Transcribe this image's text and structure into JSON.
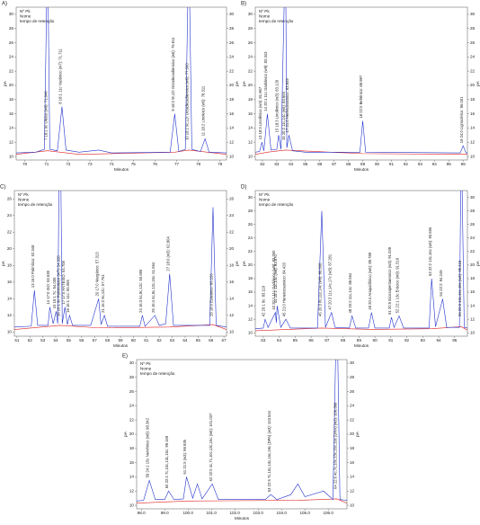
{
  "chart_data": [
    {
      "type": "line",
      "panel": "A)",
      "info_lines": [
        "Nº Pk",
        "Nome",
        "tempo de retenção"
      ],
      "xlabel": "Minutos",
      "ylabel": "pA",
      "xlim": [
        69.6,
        79.3
      ],
      "xticks": [
        70,
        71,
        72,
        73,
        74,
        75,
        76,
        77,
        78,
        79
      ],
      "ylim": [
        9.5,
        31
      ],
      "yticks": [
        10,
        12,
        14,
        16,
        18,
        20,
        22,
        24,
        26,
        28,
        30
      ],
      "series": [
        {
          "color": "#2233cc",
          "x": [
            69.6,
            70.5,
            70.9,
            71.046,
            71.15,
            71.5,
            71.711,
            71.9,
            72.5,
            73.4,
            74,
            76.7,
            76.911,
            77.1,
            77.4,
            77.56,
            77.7,
            78.1,
            78.311,
            78.5,
            79.3
          ],
          "values": [
            10.5,
            10.6,
            11,
            40,
            11,
            10.8,
            17,
            10.9,
            10.6,
            10.9,
            10.5,
            10.6,
            16,
            10.7,
            11,
            40,
            11,
            10.7,
            12.5,
            10.6,
            10.5
          ]
        },
        {
          "color": "#e02020",
          "x": [
            69.6,
            71.046,
            72.5,
            76.911,
            77.56,
            79.3
          ],
          "values": [
            10.3,
            10.8,
            10.3,
            10.6,
            10.9,
            10.3
          ]
        }
      ],
      "annotations": [
        {
          "text": "7 18:1 9c Oleico (w9): 71.046",
          "x": 71.046
        },
        {
          "text": "8 18:1 11c Vacênico (w7): 71.711",
          "x": 71.711
        },
        {
          "text": "9 18:2 9t,12t Octadecadienoico (w6): 76.911",
          "x": 76.911
        },
        {
          "text": "10 18:2 9c,12t Octadecadienoico (w6): 77.560",
          "x": 77.56
        },
        {
          "text": "11 18:2 Linoleico (w6): 78.311",
          "x": 78.311
        }
      ]
    },
    {
      "type": "line",
      "panel": "B)",
      "info_lines": [
        "Nº Pk",
        "Nome",
        "tempo de retenção"
      ],
      "xlabel": "Minutos",
      "ylabel": "pA",
      "xlim": [
        81.5,
        96.3
      ],
      "xticks": [
        82,
        83,
        84,
        85,
        86,
        87,
        88,
        89,
        90,
        91,
        92,
        93,
        94,
        95,
        96
      ],
      "ylim": [
        9.5,
        31
      ],
      "yticks": [
        10,
        12,
        14,
        16,
        18,
        20,
        22,
        24,
        26,
        28,
        30
      ],
      "series": [
        {
          "color": "#2233cc",
          "x": [
            81.5,
            81.8,
            81.967,
            82.1,
            82.343,
            82.6,
            83.0,
            83.129,
            83.3,
            83.604,
            83.7,
            83.849,
            84.1,
            85,
            88.8,
            88.997,
            89.2,
            95.8,
            96.001,
            96.2,
            96.3
          ],
          "values": [
            10.6,
            10.7,
            12,
            10.8,
            16,
            10.9,
            11,
            13,
            11,
            40,
            11.2,
            13,
            10.8,
            10.6,
            10.6,
            15,
            10.6,
            10.5,
            11.5,
            10.5,
            10.5
          ]
        },
        {
          "color": "#e02020",
          "x": [
            81.5,
            82.343,
            83.604,
            89,
            96.3
          ],
          "values": [
            10.3,
            10.6,
            10.9,
            10.4,
            10.3
          ]
        }
      ],
      "annotations": [
        {
          "text": "13 18:3 Linolênico (w3): 81.967",
          "x": 81.967
        },
        {
          "text": "14 20:1 11c Gadoleico (w9): 82.343",
          "x": 82.343
        },
        {
          "text": "15 18:3 Linolênico (w3): 83.129",
          "x": 83.129
        },
        {
          "text": "16 20:2 11c,14c (w6): 83.604",
          "x": 83.604
        },
        {
          "text": "17 21:0 Heneicosanoico: 83.849",
          "x": 83.849
        },
        {
          "text": "18 22:0 Behênico: 88.997",
          "x": 88.997
        },
        {
          "text": "19 24:0 Lignocérico: 96.001",
          "x": 96.001
        }
      ]
    },
    {
      "type": "line",
      "panel": "C)",
      "info_lines": [
        "Nº Pk",
        "Nome",
        "tempo de retenção"
      ],
      "xlabel": "Minutos",
      "ylabel": "pA",
      "xlim": [
        50.8,
        67.2
      ],
      "xticks": [
        51,
        52,
        53,
        54,
        55,
        56,
        57,
        58,
        59,
        60,
        61,
        62,
        63,
        64,
        65,
        66,
        67
      ],
      "ylim": [
        9.5,
        27
      ],
      "yticks": [
        10,
        12,
        14,
        16,
        18,
        20,
        22,
        24,
        26
      ],
      "series": [
        {
          "color": "#2233cc",
          "x": [
            50.8,
            52.1,
            52.348,
            52.6,
            53.4,
            53.539,
            53.8,
            54.035,
            54.15,
            54.32,
            54.5,
            54.708,
            54.9,
            55.066,
            55.3,
            56.7,
            57.313,
            57.5,
            57.761,
            58,
            60.5,
            60.695,
            60.9,
            61.664,
            62,
            62.5,
            62.804,
            63.1,
            65.9,
            66.156,
            66.4,
            67.2
          ],
          "values": [
            10.6,
            10.7,
            15,
            10.8,
            10.8,
            13,
            11,
            12.5,
            11,
            40,
            11,
            13,
            10.9,
            12,
            10.8,
            10.8,
            14,
            10.9,
            12,
            10.7,
            10.7,
            12,
            10.7,
            12,
            10.8,
            11,
            17,
            10.8,
            10.8,
            25,
            10.8,
            10.6
          ]
        },
        {
          "color": "#e02020",
          "x": [
            50.8,
            54.32,
            57.313,
            62.804,
            66.156,
            67.2
          ],
          "values": [
            10.3,
            10.8,
            10.5,
            10.6,
            10.9,
            10.3
          ]
        }
      ],
      "annotations": [
        {
          "text": "13 16:0 Palmítico: 52.348",
          "x": 52.348
        },
        {
          "text": "14 17:0 ISO: 53.539",
          "x": 53.539
        },
        {
          "text": "15 16:1 7c: 54.035",
          "x": 54.035
        },
        {
          "text": "16 16:1 9c Palmitoleico (w7): 54.320",
          "x": 54.32
        },
        {
          "text": "17 17:0 ANTEISO: 54.708",
          "x": 54.708
        },
        {
          "text": "18 16:1 11c: 55.066",
          "x": 55.066
        },
        {
          "text": "20 17:0 Margárico: 57.313",
          "x": 57.313
        },
        {
          "text": "21 16:2 9c,12c: 57.761",
          "x": 57.761
        },
        {
          "text": "24 16:3 6c,9c,12c: 60.695",
          "x": 60.695
        },
        {
          "text": "25 16:4 6c,9c,12c,15c: 61.664",
          "x": 61.664
        },
        {
          "text": "27 18:0 (w3): 62.804",
          "x": 62.804
        },
        {
          "text": "28 18:0 Esteárico: 66.156",
          "x": 66.156
        }
      ]
    },
    {
      "type": "line",
      "panel": "D)",
      "info_lines": [
        "Nº Pk",
        "Nome",
        "tempo de retenção"
      ],
      "xlabel": "Minutos",
      "ylabel": "pA",
      "xlim": [
        82.5,
        95.8
      ],
      "xticks": [
        83,
        84,
        85,
        86,
        87,
        88,
        89,
        90,
        91,
        92,
        93,
        94,
        95
      ],
      "ylim": [
        9.5,
        31
      ],
      "yticks": [
        10,
        12,
        14,
        16,
        18,
        20,
        22,
        24,
        26,
        28,
        30
      ],
      "series": [
        {
          "color": "#2233cc",
          "x": [
            82.5,
            83.0,
            83.119,
            83.3,
            83.76,
            83.82,
            83.87,
            84.1,
            84.42,
            84.7,
            86.4,
            86.668,
            86.9,
            87.281,
            87.5,
            88.4,
            88.564,
            88.8,
            89.6,
            89.789,
            90,
            90.9,
            91.039,
            91.2,
            91.519,
            91.8,
            93.4,
            93.556,
            93.8,
            94.249,
            94.5,
            95.3,
            95.415,
            95.6,
            95.8
          ],
          "values": [
            10.6,
            10.7,
            12,
            10.8,
            13,
            11.5,
            14,
            10.8,
            12,
            10.7,
            10.7,
            28,
            10.8,
            13,
            10.8,
            10.7,
            12.5,
            10.7,
            10.7,
            13,
            10.7,
            10.7,
            12.3,
            10.8,
            12.5,
            10.7,
            10.7,
            18,
            10.9,
            15,
            10.8,
            10.8,
            40,
            10.8,
            10.7
          ]
        },
        {
          "color": "#e02020",
          "x": [
            82.5,
            86.668,
            89.789,
            93.556,
            95.415,
            95.8
          ],
          "values": [
            10.3,
            10.7,
            10.5,
            10.6,
            10.9,
            10.4
          ]
        }
      ],
      "annotations": [
        {
          "text": "42 20:1 9c: 83.119",
          "x": 83.119
        },
        {
          "text": "43 20:1 11c Gadoleico (w9): 83.760",
          "x": 83.76
        },
        {
          "text": "44 20:2 11c,14c (w6): 83.870",
          "x": 83.87
        },
        {
          "text": "45 21:0 Heneicosanoico: 84.420",
          "x": 84.42
        },
        {
          "text": "46 20:3 8c,11c,14c (w6): 86.668",
          "x": 86.668
        },
        {
          "text": "47 20:3 11c,14c,17c (w3): 87.281",
          "x": 87.281
        },
        {
          "text": "48 20:2 11c,14c: 88.564",
          "x": 88.564
        },
        {
          "text": "49 20:4 Araquidônico (w6): 89.789",
          "x": 89.789
        },
        {
          "text": "51 20:5 Eicosapentaenoico (w3): 91.039",
          "x": 91.039
        },
        {
          "text": "52 22:1 13c Erúcico (w9): 91.519",
          "x": 91.519
        },
        {
          "text": "53 22:2 13c,16c (w6): 93.556",
          "x": 93.556
        },
        {
          "text": "54 22:2: 94.249",
          "x": 94.249
        },
        {
          "text": "56 22:3 13c,16c,19c (w3): 95.415",
          "x": 95.415
        }
      ]
    },
    {
      "type": "line",
      "panel": "E)",
      "info_lines": [
        "Nº Pk",
        "Nome",
        "tempo de retenção"
      ],
      "xlabel": "Minutos",
      "ylabel": "pA",
      "xlim": [
        97.8,
        106.8
      ],
      "xticks": [
        {
          "value": 98,
          "label": "98.0"
        },
        {
          "value": 99,
          "label": "99.0"
        },
        {
          "value": 100,
          "label": "100.0"
        },
        {
          "value": 101,
          "label": "101.0"
        },
        {
          "value": 102,
          "label": "102.0"
        },
        {
          "value": 103,
          "label": "103.0"
        },
        {
          "value": 104,
          "label": "104.0"
        },
        {
          "value": 105,
          "label": "105.0"
        },
        {
          "value": 106,
          "label": "106.0"
        }
      ],
      "ylim": [
        9.5,
        30.5
      ],
      "yticks": [
        10,
        12,
        14,
        16,
        18,
        20,
        22,
        24,
        26,
        28,
        30
      ],
      "series": [
        {
          "color": "#2233cc",
          "x": [
            97.8,
            98.1,
            98.342,
            98.6,
            99.0,
            99.169,
            99.4,
            99.8,
            99.935,
            100.2,
            100.4,
            100.6,
            101.037,
            101.3,
            103.3,
            103.544,
            103.8,
            104.4,
            104.7,
            105.0,
            105.8,
            106.2,
            106.366,
            106.5,
            106.8
          ],
          "values": [
            10.6,
            10.7,
            13.5,
            10.8,
            10.8,
            12,
            10.8,
            10.9,
            14,
            11,
            13,
            10.9,
            13,
            10.8,
            10.8,
            11.5,
            10.8,
            11.5,
            13,
            11.2,
            12,
            10.8,
            40,
            10.8,
            10.7
          ]
        },
        {
          "color": "#e02020",
          "x": [
            97.8,
            99.935,
            104.7,
            106.366,
            106.8
          ],
          "values": [
            10.3,
            10.6,
            10.7,
            10.9,
            10.3
          ]
        }
      ],
      "annotations": [
        {
          "text": "59 24:1 15c Nervônico (w9): 98.342",
          "x": 98.342
        },
        {
          "text": "60 22:4 7c,10c,13c,16c: 99.169",
          "x": 99.169
        },
        {
          "text": "61 21:5 (w3): 99.935",
          "x": 99.935
        },
        {
          "text": "62 22:5 4c,7c,10c,13c,16c (w6): 101.037",
          "x": 101.037
        },
        {
          "text": "63 22:5 7c,10c,13c,16c,19c (DPA) (w3): 103.544",
          "x": 103.544
        },
        {
          "text": "64 22:6 4c,7c,10c,13c,16c,19c (DHA) (w3): 106.366",
          "x": 106.366
        }
      ]
    }
  ]
}
